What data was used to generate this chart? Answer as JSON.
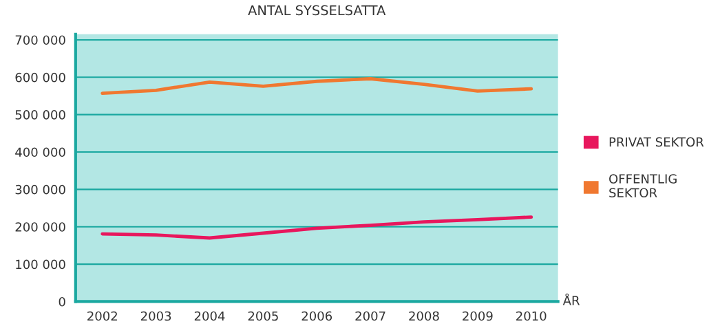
{
  "chart_data": {
    "type": "line",
    "title": "ANTAL SYSSELSATTA",
    "xlabel": "ÅR",
    "categories": [
      "2002",
      "2003",
      "2004",
      "2005",
      "2006",
      "2007",
      "2008",
      "2009",
      "2010"
    ],
    "series": [
      {
        "name": "PRIVAT SEKTOR",
        "color": "#e8175d",
        "values": [
          181000,
          178000,
          170000,
          183000,
          196000,
          204000,
          213000,
          219000,
          226000
        ]
      },
      {
        "name": "OFFENTLIG SEKTOR",
        "color": "#f07830",
        "values": [
          557000,
          565000,
          587000,
          576000,
          589000,
          596000,
          581000,
          563000,
          569000
        ]
      }
    ],
    "ylim": [
      0,
      715000
    ],
    "yticks": [
      0,
      {
        "value": 100000,
        "label": "100 000"
      },
      {
        "value": 200000,
        "label": "200 000"
      },
      {
        "value": 300000,
        "label": "300 000"
      },
      {
        "value": 400000,
        "label": "400 000"
      },
      {
        "value": 500000,
        "label": "500 000"
      },
      {
        "value": 600000,
        "label": "600 000"
      },
      {
        "value": 700000,
        "label": "700 000"
      }
    ],
    "grid": "y",
    "legend": "right",
    "marker": "none",
    "line_style": "solid"
  }
}
